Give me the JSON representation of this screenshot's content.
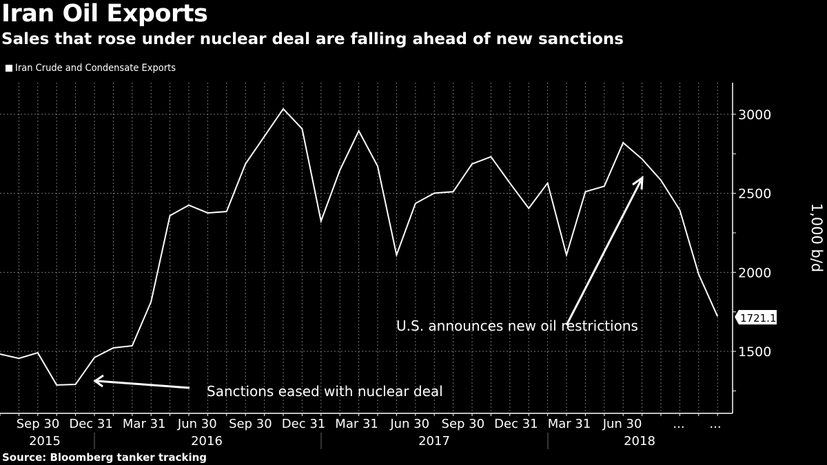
{
  "chart_data": {
    "type": "line",
    "title": "Iran Oil Exports",
    "subtitle": "Sales that rose under nuclear deal are falling ahead of new sanctions",
    "legend": [
      "Iran Crude and Condensate Exports"
    ],
    "legend_placement": "top-left",
    "ylabel": "1,000 b/d",
    "xlabel": "",
    "ylim": [
      1108,
      3200
    ],
    "yticks": [
      1500,
      2000,
      2500,
      3000
    ],
    "yminor_ticks": [
      1250,
      1750,
      2250,
      2750
    ],
    "grid": true,
    "x_tick_labels": [
      "Sep 30",
      "Dec 31",
      "Mar 31",
      "Jun 30",
      "Sep 30",
      "Dec 31",
      "Mar 31",
      "Jun 30",
      "Sep 30",
      "Dec 31",
      "Mar 31",
      "Jun 30",
      "...",
      "..."
    ],
    "year_labels": [
      "2015",
      "2016",
      "2017",
      "2018"
    ],
    "series": [
      {
        "name": "Iran Crude and Condensate Exports",
        "values": [
          1483,
          1456,
          1491,
          1287,
          1291,
          1461,
          1522,
          1535,
          1814,
          2359,
          2425,
          2376,
          2385,
          2686,
          2860,
          3034,
          2908,
          2324,
          2647,
          2895,
          2671,
          2110,
          2436,
          2501,
          2510,
          2686,
          2731,
          2565,
          2405,
          2565,
          2110,
          2510,
          2545,
          2820,
          2717,
          2583,
          2394,
          1988,
          1721.111
        ]
      }
    ],
    "last_value_label": "1721.111",
    "annotations": [
      {
        "text": "Sanctions eased with nuclear deal",
        "points_to_index": 5
      },
      {
        "text": "U.S. announces new oil restrictions",
        "points_to_index": 34
      }
    ]
  },
  "source": "Source: Bloomberg tanker tracking",
  "colors": {
    "background": "#000000",
    "line": "#ffffff",
    "grid": "#777777"
  }
}
